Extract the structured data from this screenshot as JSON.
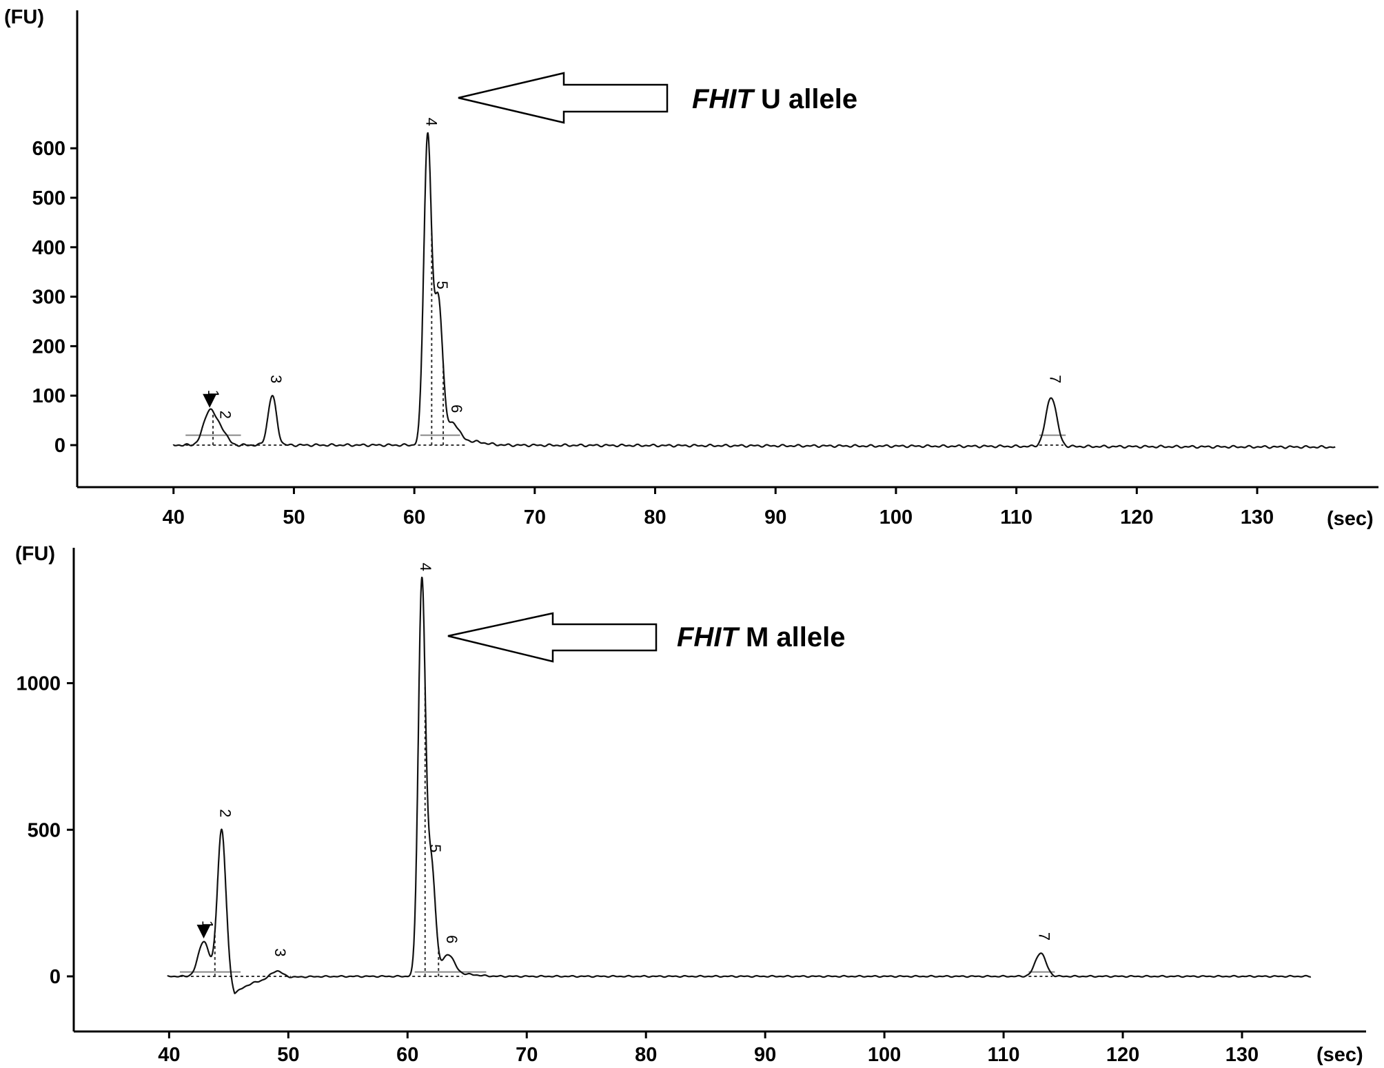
{
  "chart_data": [
    {
      "type": "line",
      "y_unit": "(FU)",
      "x_unit": "(sec)",
      "xlim": [
        32,
        137
      ],
      "ylim": [
        -60,
        680
      ],
      "x_ticks": [
        40,
        50,
        60,
        70,
        80,
        90,
        100,
        110,
        120,
        130
      ],
      "y_ticks": [
        0,
        100,
        200,
        300,
        400,
        500,
        600
      ],
      "trace_end": 136.5,
      "baseline_tilt": -4,
      "peaks": [
        {
          "label": "1",
          "x": 43.0,
          "height": 70,
          "width": 0.5,
          "marker": true
        },
        {
          "label": "2",
          "x": 44.0,
          "height": 28,
          "width": 0.45
        },
        {
          "label": "3",
          "x": 48.2,
          "height": 100,
          "width": 0.35
        },
        {
          "label": "4",
          "x": 61.1,
          "height": 620,
          "width": 0.32
        },
        {
          "label": "5",
          "x": 62.0,
          "height": 290,
          "width": 0.35
        },
        {
          "label": "6",
          "x": 63.2,
          "height": 40,
          "width": 0.5
        },
        {
          "label": "7",
          "x": 112.9,
          "height": 100,
          "width": 0.45
        }
      ],
      "annotation": {
        "italic": "FHIT",
        "rest": " U allele"
      }
    },
    {
      "type": "line",
      "y_unit": "(FU)",
      "x_unit": "(sec)",
      "xlim": [
        32,
        137
      ],
      "ylim": [
        -185,
        1435
      ],
      "x_ticks": [
        40,
        50,
        60,
        70,
        80,
        90,
        100,
        110,
        120,
        130
      ],
      "y_ticks": [
        0,
        500,
        1000
      ],
      "trace_end": 135.8,
      "baseline_tilt": 0,
      "peaks": [
        {
          "label": "1",
          "x": 42.9,
          "height": 120,
          "width": 0.45,
          "marker": true
        },
        {
          "label": "2",
          "x": 44.4,
          "height": 500,
          "width": 0.35
        },
        {
          "label": "3",
          "x": 49.0,
          "height": 25,
          "width": 0.5
        },
        {
          "label": "4",
          "x": 61.2,
          "height": 1340,
          "width": 0.3
        },
        {
          "label": "5",
          "x": 62.0,
          "height": 380,
          "width": 0.33
        },
        {
          "label": "6",
          "x": 63.4,
          "height": 70,
          "width": 0.5
        },
        {
          "label": "7",
          "x": 113.1,
          "height": 80,
          "width": 0.45
        }
      ],
      "dip": {
        "x": 45.5,
        "depth": -60
      },
      "annotation": {
        "italic": "FHIT",
        "rest": "  M allele"
      }
    }
  ]
}
